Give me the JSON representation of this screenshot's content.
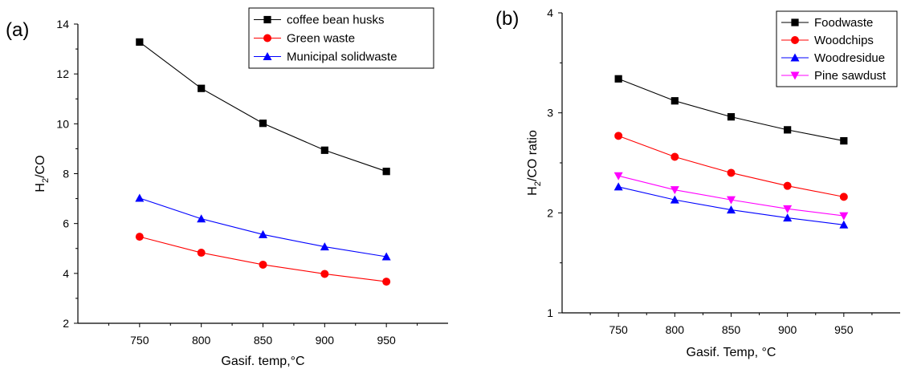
{
  "chart_data": [
    {
      "type": "line",
      "panel_label": "(a)",
      "xlabel": "Gasif. temp,°C",
      "ylabel_main": "H",
      "ylabel_sub": "2",
      "ylabel_rest": "/CO",
      "xticks": [
        750,
        800,
        850,
        900,
        950
      ],
      "yticks": [
        2,
        4,
        6,
        8,
        10,
        12,
        14
      ],
      "xlim": [
        700,
        1000
      ],
      "ylim": [
        2,
        14
      ],
      "legend_position": "top-right",
      "x": [
        750,
        800,
        850,
        900,
        950
      ],
      "series": [
        {
          "name": "coffee bean husks",
          "color": "#000000",
          "marker": "square",
          "values": [
            13.28,
            11.42,
            10.02,
            8.94,
            8.09
          ]
        },
        {
          "name": "Green waste",
          "color": "#ff0000",
          "marker": "circle",
          "values": [
            5.47,
            4.83,
            4.35,
            3.98,
            3.67
          ]
        },
        {
          "name": "Municipal solidwaste",
          "color": "#0000ff",
          "marker": "triangle-up",
          "values": [
            7.02,
            6.19,
            5.56,
            5.07,
            4.67
          ]
        }
      ]
    },
    {
      "type": "line",
      "panel_label": "(b)",
      "xlabel": "Gasif. Temp, °C",
      "ylabel_main": "H",
      "ylabel_sub": "2",
      "ylabel_rest": "/CO ratio",
      "xticks": [
        750,
        800,
        850,
        900,
        950
      ],
      "yticks": [
        1,
        2,
        3,
        4
      ],
      "xlim": [
        700,
        1000
      ],
      "ylim": [
        1,
        4
      ],
      "legend_position": "top-right",
      "x": [
        750,
        800,
        850,
        900,
        950
      ],
      "series": [
        {
          "name": "Foodwaste",
          "color": "#000000",
          "marker": "square",
          "values": [
            3.34,
            3.12,
            2.96,
            2.83,
            2.72
          ]
        },
        {
          "name": "Woodchips",
          "color": "#ff0000",
          "marker": "circle",
          "values": [
            2.77,
            2.56,
            2.4,
            2.27,
            2.16
          ]
        },
        {
          "name": "Woodresidue",
          "color": "#0000ff",
          "marker": "triangle-up",
          "values": [
            2.26,
            2.13,
            2.03,
            1.95,
            1.88
          ]
        },
        {
          "name": "Pine sawdust",
          "color": "#ff00ff",
          "marker": "triangle-down",
          "values": [
            2.37,
            2.23,
            2.13,
            2.04,
            1.97
          ]
        }
      ]
    }
  ]
}
